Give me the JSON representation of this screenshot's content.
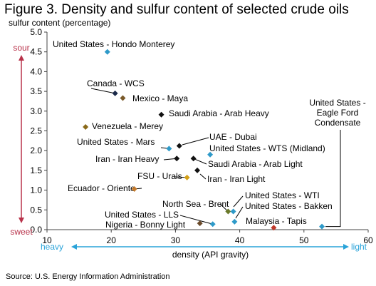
{
  "chart_data": {
    "type": "scatter",
    "title": "Figure 3. Density and sulfur content of selected crude oils",
    "ylabel": "sulfur content (percentage)",
    "xlabel": "density (API gravity)",
    "xlim": [
      10,
      60
    ],
    "ylim": [
      0,
      5
    ],
    "xticks": [
      "10",
      "20",
      "30",
      "40",
      "50",
      "60"
    ],
    "yticks": [
      "0.0",
      "0.5",
      "1.0",
      "1.5",
      "2.0",
      "2.5",
      "3.0",
      "3.5",
      "4.0",
      "4.5",
      "5.0"
    ],
    "grid": false,
    "y_scale_labels": {
      "top": "sour",
      "bottom": "sweet"
    },
    "x_scale_labels": {
      "left": "heavy",
      "right": "light"
    },
    "points": [
      {
        "label": "United States - Hondo Monterey",
        "x": 19.4,
        "y": 4.5,
        "color": "#2e9ac9"
      },
      {
        "label": "Canada - WCS",
        "x": 20.6,
        "y": 3.45,
        "color": "#1b2a4a"
      },
      {
        "label": "Mexico - Maya",
        "x": 21.8,
        "y": 3.33,
        "color": "#7a5a2a"
      },
      {
        "label": "Saudi Arabia - Arab Heavy",
        "x": 27.8,
        "y": 2.91,
        "color": "#111111"
      },
      {
        "label": "Venezuela - Merey",
        "x": 16.0,
        "y": 2.6,
        "color": "#8a6a1a"
      },
      {
        "label": "United States - Mars",
        "x": 29.0,
        "y": 2.05,
        "color": "#2e9ac9"
      },
      {
        "label": "UAE - Dubai",
        "x": 30.6,
        "y": 2.12,
        "color": "#111111"
      },
      {
        "label": "United States - WTS (Midland)",
        "x": 35.4,
        "y": 1.9,
        "color": "#2e9ac9"
      },
      {
        "label": "Iran - Iran Heavy",
        "x": 30.2,
        "y": 1.8,
        "color": "#111111"
      },
      {
        "label": "Saudi Arabia - Arab Light",
        "x": 32.8,
        "y": 1.8,
        "color": "#111111"
      },
      {
        "label": "FSU - Urals",
        "x": 31.8,
        "y": 1.32,
        "color": "#d4a017"
      },
      {
        "label": "Iran - Iran Light",
        "x": 33.4,
        "y": 1.5,
        "color": "#111111"
      },
      {
        "label": "Ecuador - Oriente",
        "x": 23.6,
        "y": 1.03,
        "color": "#c47a2c"
      },
      {
        "label": "North Sea - Brent",
        "x": 38.2,
        "y": 0.46,
        "color": "#6b7a2a"
      },
      {
        "label": "United States - WTI",
        "x": 39.0,
        "y": 0.46,
        "color": "#2e9ac9"
      },
      {
        "label": "United States - Bakken",
        "x": 39.2,
        "y": 0.2,
        "color": "#2e9ac9"
      },
      {
        "label": "United States - LLS",
        "x": 35.8,
        "y": 0.14,
        "color": "#2e9ac9"
      },
      {
        "label": "Nigeria - Bonny Light",
        "x": 33.8,
        "y": 0.16,
        "color": "#6b4a2a"
      },
      {
        "label": "Malaysia - Tapis",
        "x": 45.3,
        "y": 0.05,
        "color": "#c0392b"
      },
      {
        "label": "United States - Eagle Ford Condensate",
        "x": 52.8,
        "y": 0.08,
        "color": "#2e9ac9"
      }
    ]
  },
  "source": "Source: U.S. Energy Information Administration",
  "colors": {
    "arrow_sulfur": "#b8324a",
    "arrow_density": "#29a3d9"
  }
}
